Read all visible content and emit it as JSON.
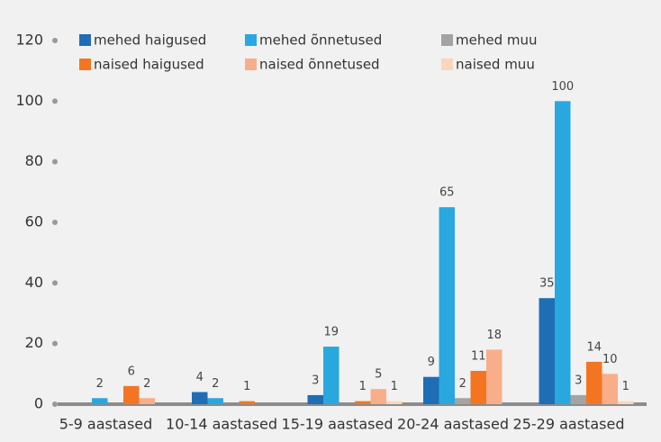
{
  "chart_data": {
    "type": "bar",
    "categories": [
      "5-9 aastased",
      "10-14 aastased",
      "15-19 aastased",
      "20-24 aastased",
      "25-29 aastased"
    ],
    "series": [
      {
        "name": "mehed haigused",
        "color": "#1f6db5",
        "values": [
          null,
          4,
          3,
          9,
          35
        ]
      },
      {
        "name": "mehed õnnetused",
        "color": "#29a8e0",
        "values": [
          2,
          2,
          19,
          65,
          100
        ]
      },
      {
        "name": "mehed muu",
        "color": "#a3a3a3",
        "values": [
          null,
          null,
          null,
          2,
          3
        ]
      },
      {
        "name": "naised haigused",
        "color": "#f47521",
        "values": [
          6,
          1,
          1,
          11,
          14
        ]
      },
      {
        "name": "naised õnnetused",
        "color": "#f8ae88",
        "values": [
          2,
          null,
          5,
          18,
          10
        ]
      },
      {
        "name": "naised muu",
        "color": "#fbd5bc",
        "values": [
          null,
          null,
          1,
          null,
          1
        ]
      }
    ],
    "ylim": [
      0,
      120
    ],
    "yticks": [
      0,
      20,
      40,
      60,
      80,
      100,
      120
    ]
  }
}
